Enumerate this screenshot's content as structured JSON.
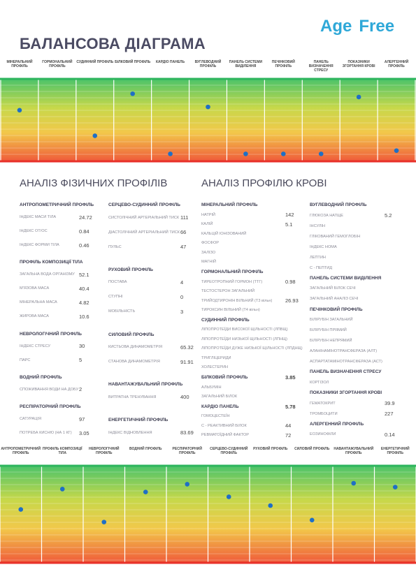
{
  "header": {
    "title": "БАЛАНСОВА ДІАГРАМА",
    "logo": [
      "Age",
      "Free"
    ]
  },
  "chart_data": [
    {
      "type": "dot",
      "color": "#1f6fc5",
      "ylim": [
        0,
        100
      ],
      "categories": [
        "МІНЕРАЛЬНИЙ ПРОФІЛЬ",
        "ГОРМОНАЛЬНИЙ ПРОФІЛЬ",
        "СУДИННИЙ ПРОФІЛЬ",
        "БІЛКОВИЙ ПРОФІЛЬ",
        "КАРДІО ПАНЕЛЬ",
        "ВУГЛЕВОДНИЙ ПРОФІЛЬ",
        "ПАНЕЛЬ СИСТЕМИ ВИДІЛЕННЯ",
        "ПЕЧІНКОВИЙ ПРОФІЛЬ",
        "ПАНЕЛЬ ВИЗНАЧЕННЯ СТРЕСУ",
        "ПОКАЗНИКИ ЗГОРТАННЯ КРОВІ",
        "АЛЕРГЕННИЙ ПРОФІЛЬ"
      ],
      "values": [
        62,
        null,
        31,
        82,
        9,
        66,
        9,
        9,
        9,
        78,
        13
      ]
    },
    {
      "type": "dot",
      "color": "#1f6fc5",
      "ylim": [
        0,
        100
      ],
      "categories": [
        "АНТРОПОМЕТРИЧНИЙ ПРОФІЛЬ",
        "ПРОФІЛЬ КОМПОЗИЦІЇ ТІЛА",
        "НЕВРОЛОГІЧНИЙ ПРОФІЛЬ",
        "ВОДНИЙ ПРОФІЛЬ",
        "РЕСПІРАТОРНИЙ ПРОФІЛЬ",
        "СЕРЦЕВО-СУДИННИЙ ПРОФІЛЬ",
        "РУХОВИЙ ПРОФІЛЬ",
        "СИЛОВИЙ ПРОФІЛЬ",
        "НАВАНТАЖУВАЛЬНИЙ ПРОФІЛЬ",
        "ЕНЕРГЕТИЧНИЙ ПРОФІЛЬ"
      ],
      "values": [
        55,
        76,
        42,
        73,
        81,
        68,
        59,
        44,
        82,
        78
      ]
    }
  ],
  "physical": {
    "title": "АНАЛІЗ ФІЗИЧНИХ ПРОФІЛІВ",
    "columns": [
      {
        "groups": [
          {
            "title": "АНТРОПОМЕТРИЧНИЙ ПРОФІЛЬ",
            "items": [
              {
                "label": "ІНДЕКС МАСИ ТІЛА",
                "value": "24.72"
              },
              {
                "label": "ІНДЕКС ОТ/ОС",
                "value": "0.84"
              },
              {
                "label": "ІНДЕКС ФОРМИ ТІЛА",
                "value": "0.46"
              }
            ]
          },
          {
            "title": "ПРОФІЛЬ КОМПОЗИЦІЇ ТІЛА",
            "items": [
              {
                "label": "ЗАГАЛЬНА ВОДА ОРГАНІЗМУ",
                "value": "52.1"
              },
              {
                "label": "М'ЯЗОВА МАСА",
                "value": "40.4"
              },
              {
                "label": "МІНЕРАЛЬНА МАСА",
                "value": "4.82"
              },
              {
                "label": "ЖИРОВА МАСА",
                "value": "10.6"
              }
            ]
          },
          {
            "title": "НЕВРОЛОГІЧНИЙ ПРОФІЛЬ",
            "items": [
              {
                "label": "ІНДЕКС СТРЕСУ",
                "value": "30"
              },
              {
                "label": "ПАРС",
                "value": "5"
              }
            ]
          },
          {
            "title": "ВОДНИЙ ПРОФІЛЬ",
            "items": [
              {
                "label": "СПОЖИВАННЯ ВОДИ НА ДОБУ",
                "value": "2"
              }
            ]
          },
          {
            "title": "РЕСПІРАТОРНИЙ ПРОФІЛЬ",
            "items": [
              {
                "label": "САТУРАЦІЯ",
                "value": "97"
              },
              {
                "label": "ПОТРЕБА КИСНЮ (НА 1 КГ)",
                "value": "3.05"
              }
            ]
          }
        ]
      },
      {
        "groups": [
          {
            "title": "СЕРЦЕВО-СУДИННИЙ ПРОФІЛЬ",
            "items": [
              {
                "label": "СИСТОЛІЧНИЙ АРТЕРІАЛЬНИЙ ТИСК",
                "value": "111"
              },
              {
                "label": "ДІАСТОЛІЧНИЙ АРТЕРІАЛЬНИЙ ТИСК",
                "value": "66"
              },
              {
                "label": "ПУЛЬС",
                "value": "47"
              }
            ]
          },
          {
            "title": "РУХОВИЙ ПРОФІЛЬ",
            "items": [
              {
                "label": "ПОСТАВА",
                "value": "4"
              },
              {
                "label": "СТУПНІ",
                "value": "0"
              },
              {
                "label": "МОБІЛЬНІСТЬ",
                "value": "3"
              }
            ]
          },
          {
            "title": "СИЛОВИЙ ПРОФІЛЬ",
            "items": [
              {
                "label": "КИСТЬОВА ДИНАМОМЕТРІЯ",
                "value": "65.32"
              },
              {
                "label": "СТАНОВА ДИНАМОМЕТРІЯ",
                "value": "91.91"
              }
            ]
          },
          {
            "title": "НАВАНТАЖУВАЛЬНИЙ ПРОФІЛЬ",
            "items": [
              {
                "label": "ВИТРАТНА ТРЕНУВАННЯ",
                "value": "400"
              }
            ]
          },
          {
            "title": "ЕНЕРГЕТИЧНИЙ ПРОФІЛЬ",
            "items": [
              {
                "label": "ІНДЕКС ВІДНОВЛЕННЯ",
                "value": "83.69"
              }
            ]
          }
        ]
      }
    ]
  },
  "blood": {
    "title": "АНАЛІЗ ПРОФІЛЮ КРОВІ",
    "columns": [
      {
        "groups": [
          {
            "title": "МІНЕРАЛЬНИЙ ПРОФІЛЬ",
            "items": [
              {
                "label": "НАТРІЙ",
                "value": "142"
              },
              {
                "label": "КАЛІЙ",
                "value": "5.1"
              },
              {
                "label": "КАЛЬЦІЙ ІОНІЗОВАНИЙ"
              },
              {
                "label": "ФОСФОР"
              },
              {
                "label": "ЗАЛІЗО"
              },
              {
                "label": "МАГНІЙ"
              }
            ]
          },
          {
            "title": "ГОРМОНАЛЬНИЙ ПРОФІЛЬ",
            "items": [
              {
                "label": "ТИРЕОТРОПНИЙ ГОРМОН (ТТГ)",
                "value": "0.98"
              },
              {
                "label": "ТЕСТОСТЕРОН ЗАГАЛЬНИЙ"
              },
              {
                "label": "ТРИЙОДТИРОНІН ВІЛЬНИЙ (Т3 вільн)",
                "value": "26.93"
              },
              {
                "label": "ТИРОКСИН ВІЛЬНИЙ (Т4 вільн)"
              }
            ]
          },
          {
            "title": "СУДИННИЙ ПРОФІЛЬ",
            "items": [
              {
                "label": "ЛІПОПРОТЕЇДИ ВИСОКОЇ ЩІЛЬНОСТІ (ЛПВЩ)"
              },
              {
                "label": "ЛІПОПРОТЕЇДИ НИЗЬКОЇ ЩІЛЬНОСТІ (ЛПНЩ)"
              },
              {
                "label": "ЛІПОПРОТЕЇДИ ДУЖЕ НИЗЬКОЇ ЩІЛЬНОСТІ (ЛПДНЩ)"
              },
              {
                "label": "ТРИГЛІЦЕРИДИ"
              },
              {
                "label": "ХОЛЕСТЕРИН"
              }
            ]
          },
          {
            "title": "БІЛКОВИЙ ПРОФІЛЬ",
            "value": "3.85",
            "items": [
              {
                "label": "АЛЬБУМІН"
              },
              {
                "label": "ЗАГАЛЬНИЙ БІЛОК"
              }
            ]
          },
          {
            "title": "КАРДІО ПАНЕЛЬ",
            "value": "5.78",
            "items": [
              {
                "label": "ГОМОЦЕСТЕЇН"
              },
              {
                "label": "С - РЕАКТИВНИЙ БІЛОК",
                "value": "44"
              },
              {
                "label": "РЕВМАТОЇДНИЙ ФАКТОР",
                "value": "72"
              }
            ]
          }
        ]
      },
      {
        "groups": [
          {
            "title": "ВУГЛЕВОДНИЙ ПРОФІЛЬ",
            "items": [
              {
                "label": "ГЛЮКОЗА НАТЩЕ",
                "value": "5.2"
              },
              {
                "label": "ІНСУЛІН"
              },
              {
                "label": "ГЛІКОВАНИЙ ГЕМОГЛОБІН"
              },
              {
                "label": "ІНДЕКС HOMA"
              },
              {
                "label": "ЛЕПТИН"
              },
              {
                "label": "С - ПЕПТИД"
              }
            ]
          },
          {
            "title": "ПАНЕЛЬ СИСТЕМИ ВИДІЛЕННЯ",
            "items": [
              {
                "label": "ЗАГАЛЬНИЙ БІЛОК СЕЧІ"
              },
              {
                "label": "ЗАГАЛЬНИЙ АНАЛІЗ СЕЧІ"
              }
            ]
          },
          {
            "title": "ПЕЧІНКОВИЙ ПРОФІЛЬ",
            "items": [
              {
                "label": "БІЛІРУБІН ЗАГАЛЬНИЙ"
              },
              {
                "label": "БІЛІРУБІН ПРЯМИЙ"
              },
              {
                "label": "БІЛІРУБІН НЕПРЯМИЙ"
              },
              {
                "label": "АЛАНІНАМІНОТРАНСФЕРАЗА (АЛТ)"
              },
              {
                "label": "АСПАРТАТАМІНОТРАНСФЕРАЗА (АСТ)"
              }
            ]
          },
          {
            "title": "ПАНЕЛЬ ВИЗНАЧЕННЯ СТРЕСУ",
            "items": [
              {
                "label": "КОРТІЗОЛ"
              }
            ]
          },
          {
            "title": "ПОКАЗНИКИ ЗГОРТАННЯ КРОВІ",
            "items": [
              {
                "label": "ГЕМАТОКРИТ",
                "value": "39.9"
              },
              {
                "label": "ТРОМБОЦИТИ",
                "value": "227"
              }
            ]
          },
          {
            "title": "АЛЕРГЕННИЙ ПРОФІЛЬ",
            "items": [
              {
                "label": "ЕОЗИНОФІЛИ",
                "value": "0.14"
              }
            ]
          }
        ]
      }
    ]
  }
}
